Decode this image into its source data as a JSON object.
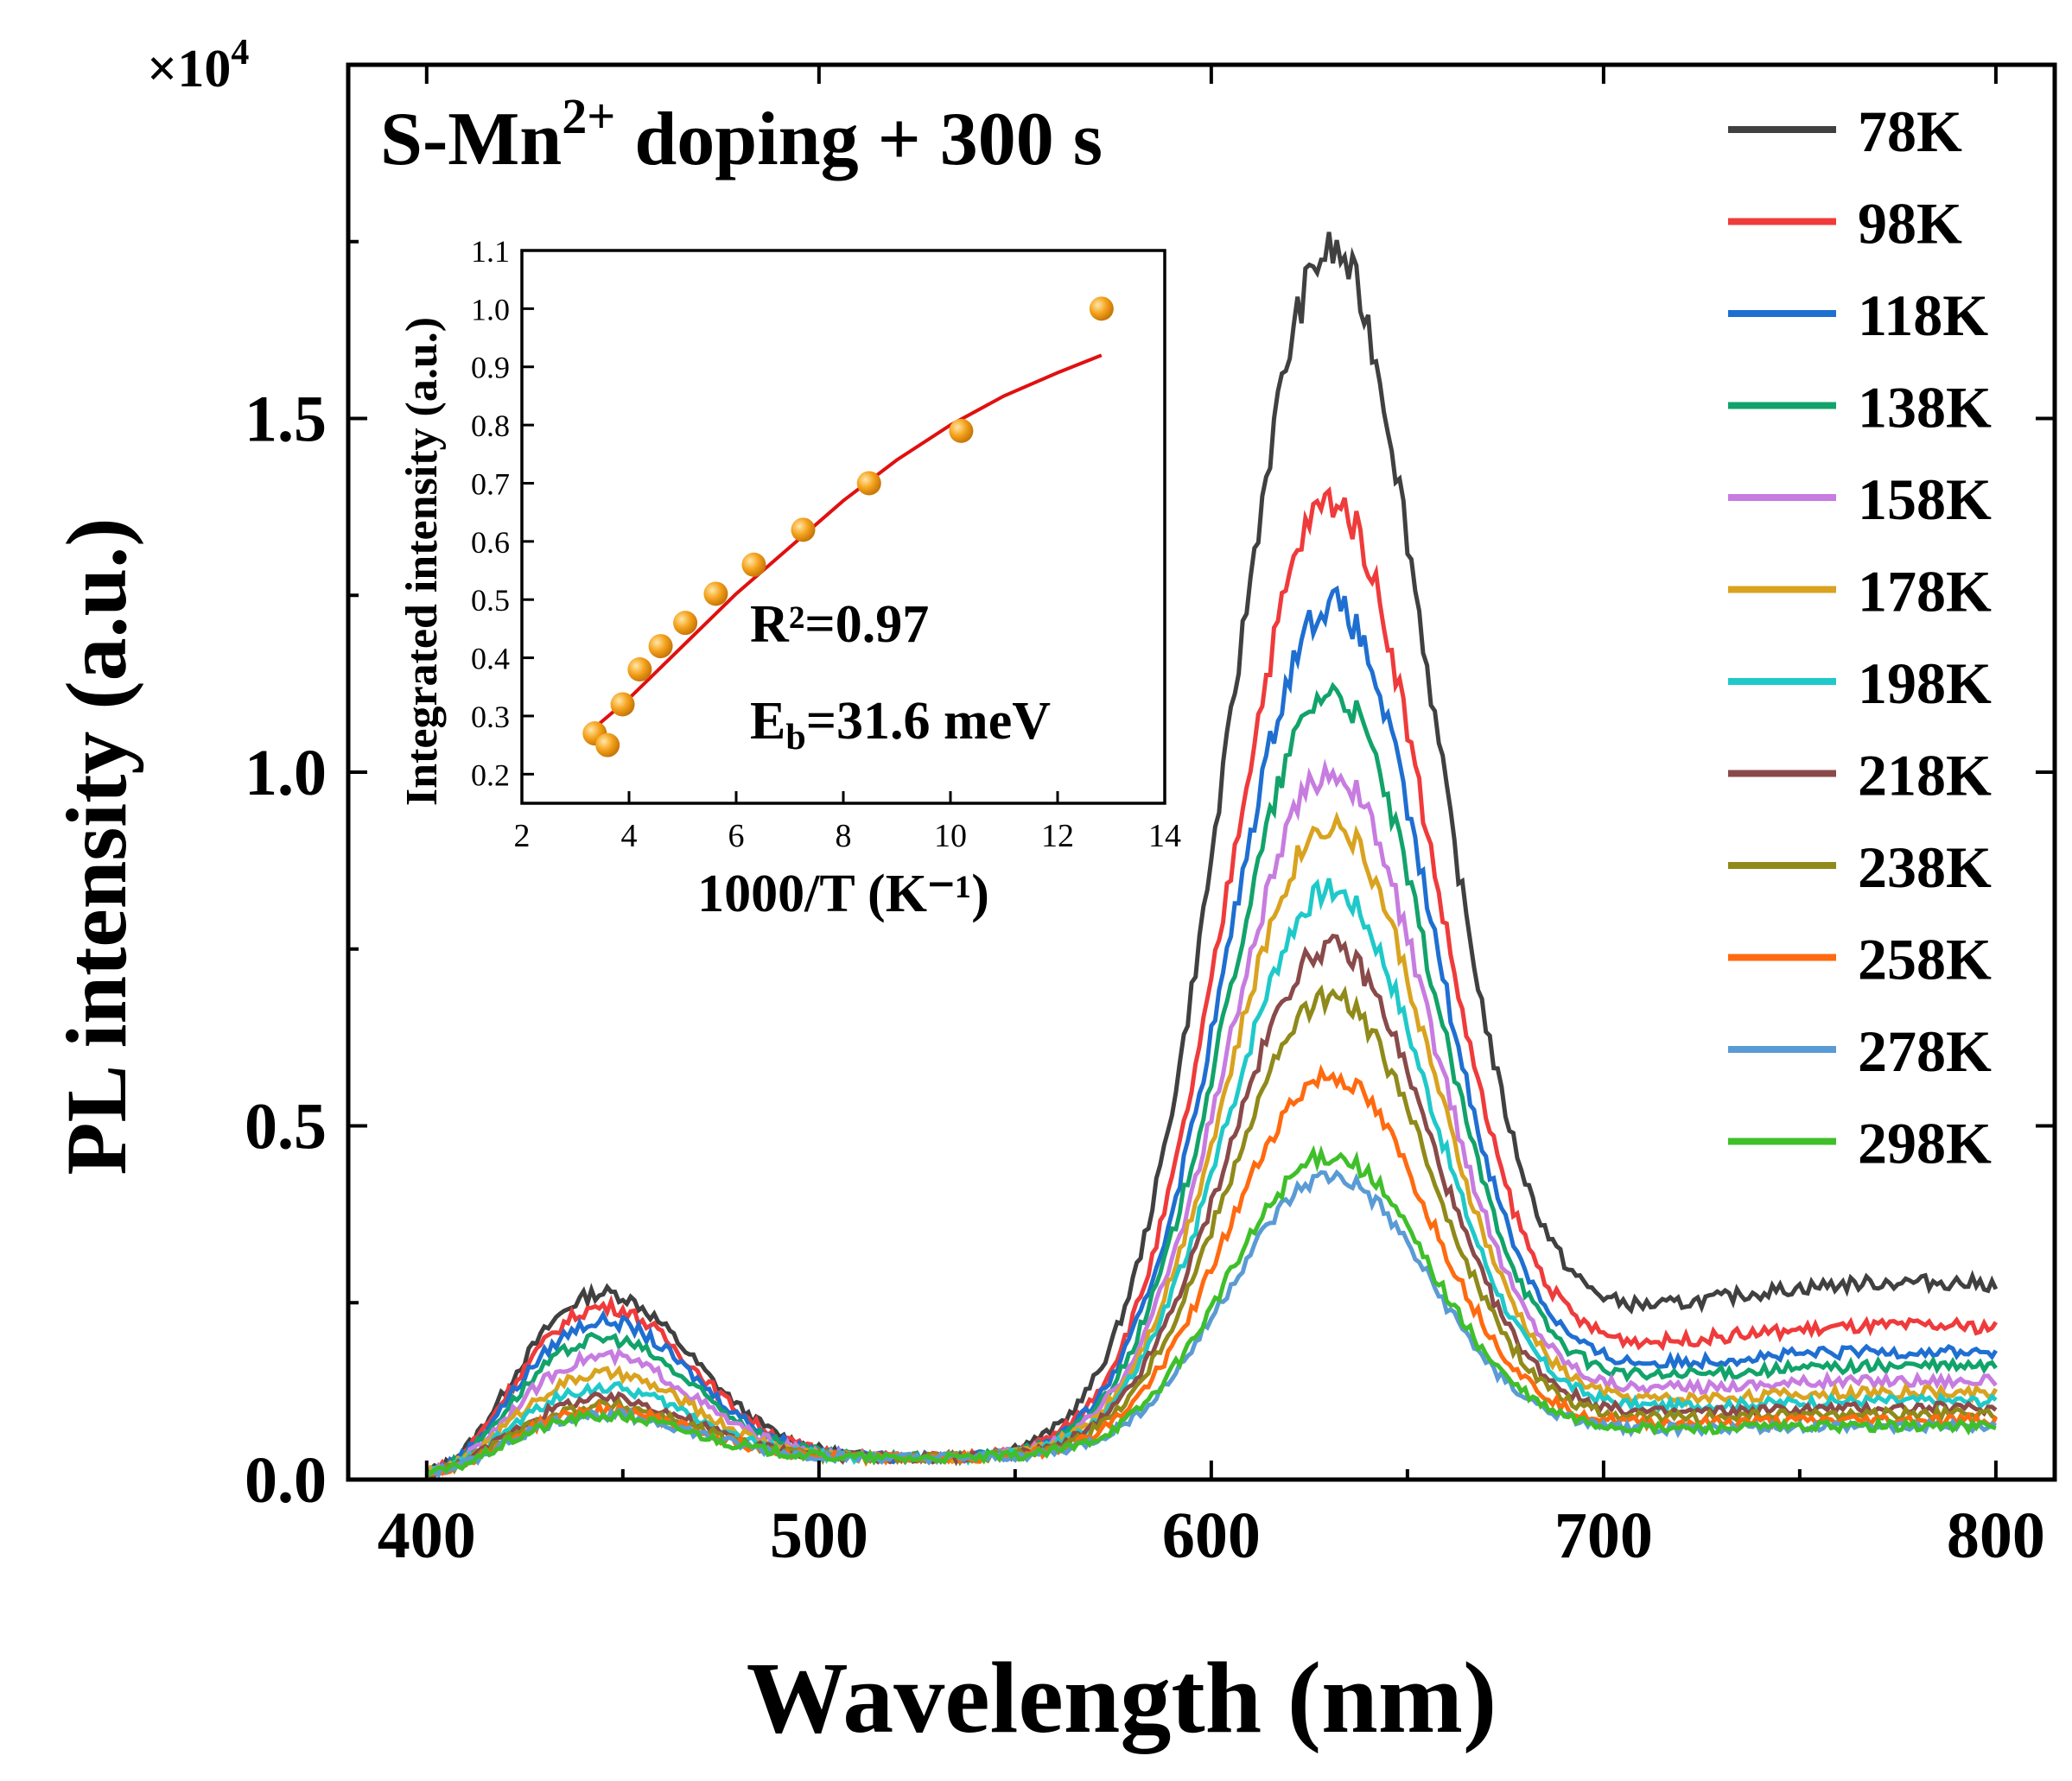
{
  "chart_data": {
    "type": "line",
    "title": "",
    "annotation_main": "S-Mn",
    "annotation_sup": "2+",
    "annotation_rest": " doping + 300 s",
    "xlabel": "Wavelength (nm)",
    "ylabel": "PL intensity (a.u.)",
    "y_multiplier_base": "×10",
    "y_multiplier_exp": "4",
    "xlim": [
      380,
      815
    ],
    "ylim": [
      0.0,
      2.0
    ],
    "x_ticks": [
      400,
      500,
      600,
      700,
      800
    ],
    "x_tick_labels": [
      "400",
      "500",
      "600",
      "700",
      "800"
    ],
    "y_ticks": [
      0.0,
      0.5,
      1.0,
      1.5
    ],
    "y_tick_labels": [
      "0.0",
      "0.5",
      "1.0",
      "1.5"
    ],
    "legend_position": "right",
    "series": [
      {
        "name": "78K",
        "color": "#404040",
        "params": {
          "a1": 0.235,
          "a2": 1.66,
          "b": 0.37,
          "d": 0.12
        }
      },
      {
        "name": "98K",
        "color": "#ef3b3b",
        "params": {
          "a1": 0.215,
          "a2": 1.32,
          "b": 0.25,
          "d": 0.1
        }
      },
      {
        "name": "118K",
        "color": "#1f6fd1",
        "params": {
          "a1": 0.195,
          "a2": 1.18,
          "b": 0.19,
          "d": 0.085
        }
      },
      {
        "name": "138K",
        "color": "#12a36a",
        "params": {
          "a1": 0.17,
          "a2": 1.06,
          "b": 0.16,
          "d": 0.075
        }
      },
      {
        "name": "158K",
        "color": "#c77ce0",
        "params": {
          "a1": 0.145,
          "a2": 0.95,
          "b": 0.13,
          "d": 0.065
        }
      },
      {
        "name": "178K",
        "color": "#d9a320",
        "params": {
          "a1": 0.12,
          "a2": 0.88,
          "b": 0.11,
          "d": 0.055
        }
      },
      {
        "name": "198K",
        "color": "#20c9c9",
        "params": {
          "a1": 0.1,
          "a2": 0.79,
          "b": 0.09,
          "d": 0.05
        }
      },
      {
        "name": "218K",
        "color": "#8a4a4a",
        "params": {
          "a1": 0.085,
          "a2": 0.71,
          "b": 0.075,
          "d": 0.045
        }
      },
      {
        "name": "238K",
        "color": "#8f8a1a",
        "params": {
          "a1": 0.075,
          "a2": 0.64,
          "b": 0.065,
          "d": 0.04
        }
      },
      {
        "name": "258K",
        "color": "#ff6a10",
        "params": {
          "a1": 0.068,
          "a2": 0.53,
          "b": 0.055,
          "d": 0.035
        }
      },
      {
        "name": "278K",
        "color": "#5a9bd5",
        "params": {
          "a1": 0.062,
          "a2": 0.39,
          "b": 0.045,
          "d": 0.03
        }
      },
      {
        "name": "298K",
        "color": "#3fbf2a",
        "params": {
          "a1": 0.06,
          "a2": 0.42,
          "b": 0.045,
          "d": 0.03
        }
      }
    ],
    "inset": {
      "type": "scatter",
      "xlabel": "1000/T (K⁻¹)",
      "ylabel": "Integrated intensity (a.u.)",
      "xlim": [
        2,
        14
      ],
      "ylim": [
        0.15,
        1.1
      ],
      "x_ticks": [
        2,
        4,
        6,
        8,
        10,
        12,
        14
      ],
      "x_tick_labels": [
        "2",
        "4",
        "6",
        "8",
        "10",
        "12",
        "14"
      ],
      "y_ticks": [
        0.2,
        0.3,
        0.4,
        0.5,
        0.6,
        0.7,
        0.8,
        0.9,
        1.0,
        1.1
      ],
      "y_tick_labels": [
        "0.2",
        "0.3",
        "0.4",
        "0.5",
        "0.6",
        "0.7",
        "0.8",
        "0.9",
        "1.0",
        "1.1"
      ],
      "points": [
        {
          "x": 3.36,
          "y": 0.27
        },
        {
          "x": 3.6,
          "y": 0.25
        },
        {
          "x": 3.88,
          "y": 0.32
        },
        {
          "x": 4.2,
          "y": 0.38
        },
        {
          "x": 4.59,
          "y": 0.42
        },
        {
          "x": 5.05,
          "y": 0.46
        },
        {
          "x": 5.62,
          "y": 0.51
        },
        {
          "x": 6.33,
          "y": 0.56
        },
        {
          "x": 7.25,
          "y": 0.62
        },
        {
          "x": 8.48,
          "y": 0.7
        },
        {
          "x": 10.2,
          "y": 0.79
        },
        {
          "x": 12.82,
          "y": 1.0
        }
      ],
      "fit": {
        "x": [
          3.36,
          4,
          5,
          6,
          7,
          8,
          9,
          10,
          11,
          12,
          12.82
        ],
        "y": [
          0.28,
          0.33,
          0.42,
          0.51,
          0.59,
          0.67,
          0.74,
          0.8,
          0.85,
          0.89,
          0.92
        ]
      },
      "r2_text": "R²=0.97",
      "eb_prefix": "E",
      "eb_sub": "b",
      "eb_rest": "=31.6 meV"
    }
  }
}
